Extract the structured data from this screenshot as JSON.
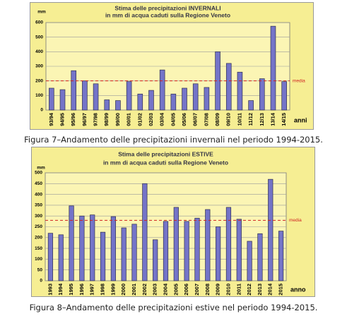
{
  "chart_data": [
    {
      "type": "bar",
      "title": "Stima delle precipitazioni INVERNALI",
      "subtitle": "in mm di acqua caduti sulla Regione Veneto",
      "y_unit": "mm",
      "x_label": "anni",
      "categories": [
        "93/94",
        "94/95",
        "95/96",
        "96/97",
        "97/98",
        "98/99",
        "99/00",
        "00/01",
        "01/02",
        "02/03",
        "03/04",
        "04/05",
        "05/06",
        "06/07",
        "07/08",
        "08/09",
        "09/10",
        "10/11",
        "11/12",
        "12/13",
        "13/14",
        "14/15"
      ],
      "values": [
        150,
        140,
        270,
        200,
        180,
        70,
        65,
        195,
        110,
        135,
        275,
        110,
        150,
        180,
        155,
        400,
        320,
        260,
        65,
        215,
        575,
        195
      ],
      "color": "#7474c8",
      "ylim": [
        0,
        600
      ],
      "yticks": [
        0,
        100,
        200,
        300,
        400,
        500,
        600
      ],
      "grid": true,
      "mean": {
        "label": "media",
        "value": 200
      },
      "caption": "Figura 7–Andamento delle precipitazioni  invernali nel periodo 1994-2015."
    },
    {
      "type": "bar",
      "title": "Stima delle precipitazioni ESTIVE",
      "subtitle": "in mm di acqua caduti sulla Regione Veneto",
      "y_unit": "mm",
      "x_label": "anno",
      "categories": [
        "1993",
        "1994",
        "1995",
        "1996",
        "1997",
        "1998",
        "1999",
        "2000",
        "2001",
        "2002",
        "2003",
        "2004",
        "2005",
        "2006",
        "2007",
        "2008",
        "2009",
        "2010",
        "2011",
        "2012",
        "2013",
        "2014",
        "2015"
      ],
      "values": [
        220,
        213,
        347,
        300,
        305,
        225,
        297,
        245,
        262,
        450,
        190,
        275,
        340,
        275,
        290,
        330,
        250,
        340,
        285,
        183,
        218,
        470,
        230
      ],
      "color": "#7474c8",
      "ylim": [
        0,
        500
      ],
      "yticks": [
        0,
        50,
        100,
        150,
        200,
        250,
        300,
        350,
        400,
        450,
        500
      ],
      "grid": true,
      "mean": {
        "label": "media",
        "value": 280
      },
      "caption": "Figura 8–Andamento delle precipitazioni  estive nel periodo 1994-2015."
    }
  ]
}
